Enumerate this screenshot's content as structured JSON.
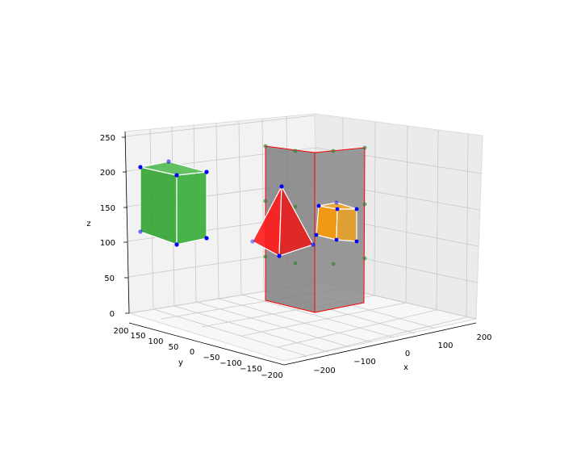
{
  "chart_data": {
    "type": "scatter",
    "projection": "3d",
    "xlabel": "x",
    "ylabel": "y",
    "zlabel": "z",
    "xlim": [
      -250,
      200
    ],
    "ylim": [
      -200,
      200
    ],
    "zlim": [
      0,
      250
    ],
    "x_ticks": [
      "−200",
      "−100",
      "0",
      "100",
      "200"
    ],
    "y_ticks": [
      "200",
      "150",
      "100",
      "50",
      "0",
      "−50",
      "−100",
      "−150",
      "−200"
    ],
    "z_ticks": [
      "0",
      "50",
      "100",
      "150",
      "200",
      "250"
    ],
    "grid": true,
    "colors": {
      "green_box": "#2ca02c",
      "red_pyramid": "#ff0000",
      "orange_box": "#ff9900",
      "gray_plane": "#808080",
      "plane_edge": "#ff0000",
      "vertex": "#0000ff",
      "plane_points": "#2a7f2a"
    },
    "objects": [
      {
        "kind": "green-box",
        "vertices": [
          {
            "x": -200,
            "y": 180,
            "z": 120
          },
          {
            "x": -200,
            "y": 100,
            "z": 120
          },
          {
            "x": -200,
            "y": 180,
            "z": 210
          },
          {
            "x": -200,
            "y": 100,
            "z": 210
          },
          {
            "x": -130,
            "y": 180,
            "z": 120
          },
          {
            "x": -130,
            "y": 100,
            "z": 120
          },
          {
            "x": -130,
            "y": 180,
            "z": 210
          },
          {
            "x": -130,
            "y": 100,
            "z": 210
          }
        ]
      },
      {
        "kind": "gray-planes",
        "points": [
          {
            "x": -150,
            "y": -50,
            "z": 0
          },
          {
            "x": -150,
            "y": -50,
            "z": 230
          },
          {
            "x": -50,
            "y": -50,
            "z": 0
          },
          {
            "x": -50,
            "y": -50,
            "z": 230
          },
          {
            "x": -50,
            "y": -150,
            "z": 0
          },
          {
            "x": -50,
            "y": -150,
            "z": 230
          }
        ]
      },
      {
        "kind": "red-pyramid",
        "vertices": [
          {
            "x": -100,
            "y": -10,
            "z": 170
          },
          {
            "x": -150,
            "y": 0,
            "z": 90
          },
          {
            "x": -100,
            "y": -40,
            "z": 80
          },
          {
            "x": -60,
            "y": -70,
            "z": 90
          }
        ]
      },
      {
        "kind": "orange-box",
        "vertices": [
          {
            "x": -30,
            "y": -100,
            "z": 100
          },
          {
            "x": -30,
            "y": -100,
            "z": 150
          },
          {
            "x": -10,
            "y": -130,
            "z": 100
          },
          {
            "x": -10,
            "y": -130,
            "z": 150
          },
          {
            "x": 0,
            "y": -100,
            "z": 100
          },
          {
            "x": 0,
            "y": -100,
            "z": 150
          },
          {
            "x": 20,
            "y": -130,
            "z": 100
          },
          {
            "x": 20,
            "y": -130,
            "z": 150
          }
        ]
      }
    ]
  }
}
